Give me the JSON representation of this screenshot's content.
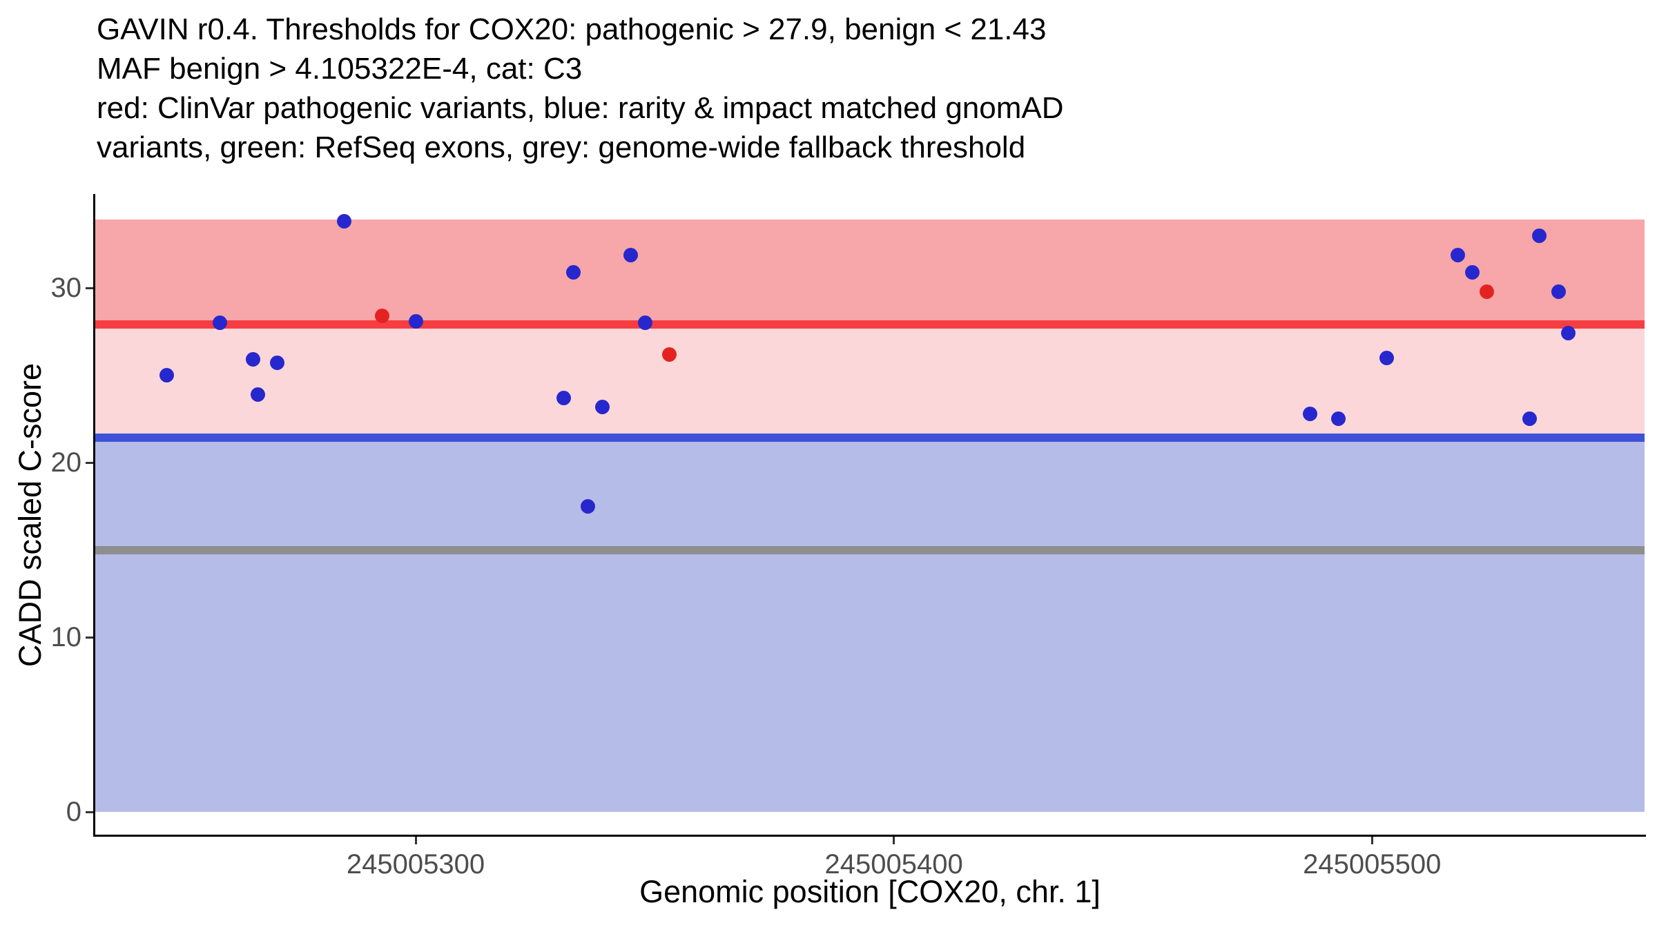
{
  "chart_data": {
    "type": "scatter",
    "title_lines": [
      "GAVIN r0.4. Thresholds for COX20: pathogenic > 27.9, benign < 21.43",
      "MAF benign > 4.105322E-4, cat: C3",
      "red: ClinVar pathogenic variants, blue: rarity & impact matched gnomAD",
      "variants, green: RefSeq exons, grey: genome-wide fallback threshold"
    ],
    "xlabel": "Genomic position [COX20, chr. 1]",
    "ylabel": "CADD scaled C-score",
    "x_domain": [
      245005233,
      245005557
    ],
    "y_domain": [
      -1.3,
      35.3
    ],
    "x_ticks": [
      245005300,
      245005400,
      245005500
    ],
    "y_ticks": [
      0,
      10,
      20,
      30
    ],
    "thresholds": {
      "pathogenic": 27.9,
      "benign": 21.43,
      "fallback": 15,
      "maf_benign": "4.105322E-4",
      "category": "C3",
      "gene": "COX20",
      "chromosome": "1"
    },
    "bands": [
      {
        "name": "pathogenic-zone",
        "from": 27.9,
        "to": 33.9,
        "color": "#F7A6A9"
      },
      {
        "name": "vous-zone",
        "from": 21.43,
        "to": 27.9,
        "color": "#FBD7D9"
      },
      {
        "name": "benign-zone",
        "from": 0,
        "to": 21.43,
        "color": "#B6BCE8"
      }
    ],
    "hlines": [
      {
        "name": "pathogenic-threshold-line",
        "y": 27.9,
        "color": "#F63E42",
        "size": 12
      },
      {
        "name": "benign-threshold-line",
        "y": 21.43,
        "color": "#3E52D9",
        "size": 12
      },
      {
        "name": "fallback-threshold-line",
        "y": 15,
        "color": "#8E8E8E",
        "size": 12
      }
    ],
    "series": [
      {
        "name": "gnomad-matched-variant",
        "label": "rarity & impact matched gnomAD variants",
        "color": "#2727CE",
        "points": [
          [
            245005248,
            25.0
          ],
          [
            245005259,
            28.0
          ],
          [
            245005266,
            25.9
          ],
          [
            245005267,
            23.9
          ],
          [
            245005271,
            25.7
          ],
          [
            245005285,
            33.8
          ],
          [
            245005300,
            28.1
          ],
          [
            245005331,
            23.7
          ],
          [
            245005333,
            30.9
          ],
          [
            245005336,
            17.5
          ],
          [
            245005339,
            23.2
          ],
          [
            245005345,
            31.9
          ],
          [
            245005348,
            28.0
          ],
          [
            245005487,
            22.8
          ],
          [
            245005493,
            22.5
          ],
          [
            245005503,
            26.0
          ],
          [
            245005518,
            31.9
          ],
          [
            245005521,
            30.9
          ],
          [
            245005533,
            22.5
          ],
          [
            245005535,
            33.0
          ],
          [
            245005539,
            29.8
          ],
          [
            245005541,
            27.4
          ]
        ]
      },
      {
        "name": "clinvar-pathogenic-variant",
        "label": "ClinVar pathogenic variants",
        "color": "#E42320",
        "points": [
          [
            245005293,
            28.4
          ],
          [
            245005353,
            26.2
          ],
          [
            245005524,
            29.8
          ]
        ]
      }
    ]
  }
}
